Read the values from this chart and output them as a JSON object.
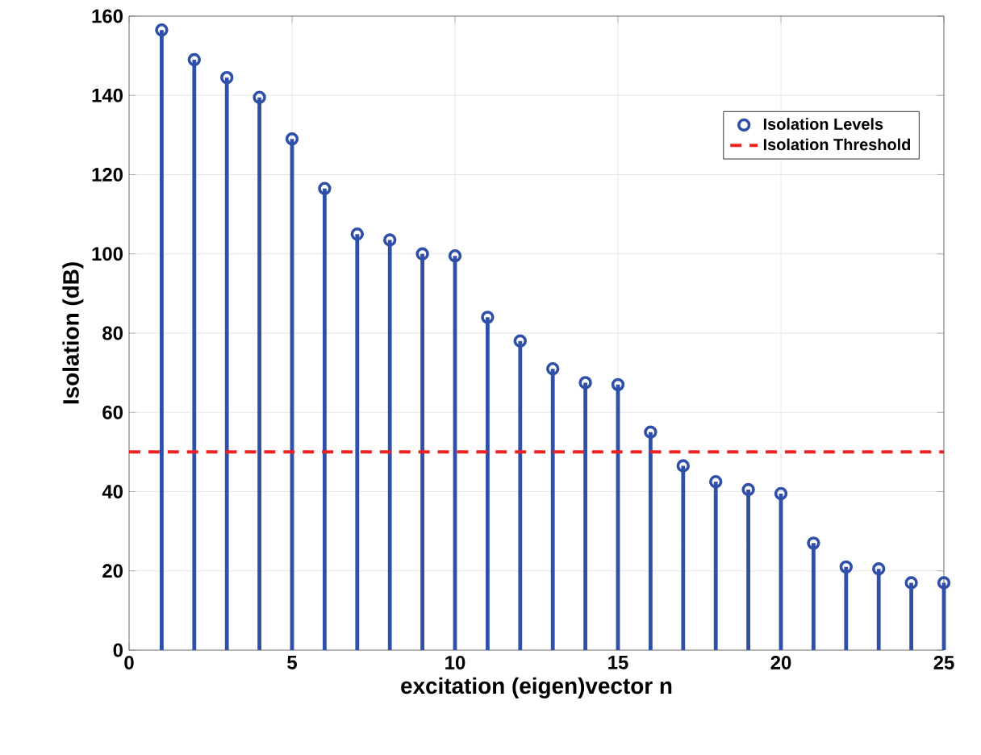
{
  "chart_data": {
    "type": "lollipop",
    "xlabel": "excitation (eigen)vector n",
    "ylabel": "Isolation (dB)",
    "x": [
      1,
      2,
      3,
      4,
      5,
      6,
      7,
      8,
      9,
      10,
      11,
      12,
      13,
      14,
      15,
      16,
      17,
      18,
      19,
      20,
      21,
      22,
      23,
      24,
      25
    ],
    "series": [
      {
        "name": "Isolation Levels",
        "color": "#2f4fa8",
        "values": [
          156.5,
          149,
          144.5,
          139.5,
          129,
          116.5,
          105,
          103.5,
          100,
          99.5,
          84,
          78,
          71,
          67.5,
          67,
          55,
          46.5,
          42.5,
          40.5,
          39.5,
          27,
          21,
          20.5,
          17,
          17
        ]
      }
    ],
    "ref_lines": [
      {
        "axis": "y",
        "value": 50,
        "label": "Isolation Threshold",
        "color": "#ee2222",
        "line_style": "dashed"
      }
    ],
    "xlim": [
      0,
      25
    ],
    "xticks": [
      0,
      5,
      10,
      15,
      20,
      25
    ],
    "ylim": [
      0,
      160
    ],
    "yticks": [
      0,
      20,
      40,
      60,
      80,
      100,
      120,
      140,
      160
    ],
    "grid": true,
    "legend": "top right",
    "marker": "circle",
    "line_style": "solid"
  }
}
